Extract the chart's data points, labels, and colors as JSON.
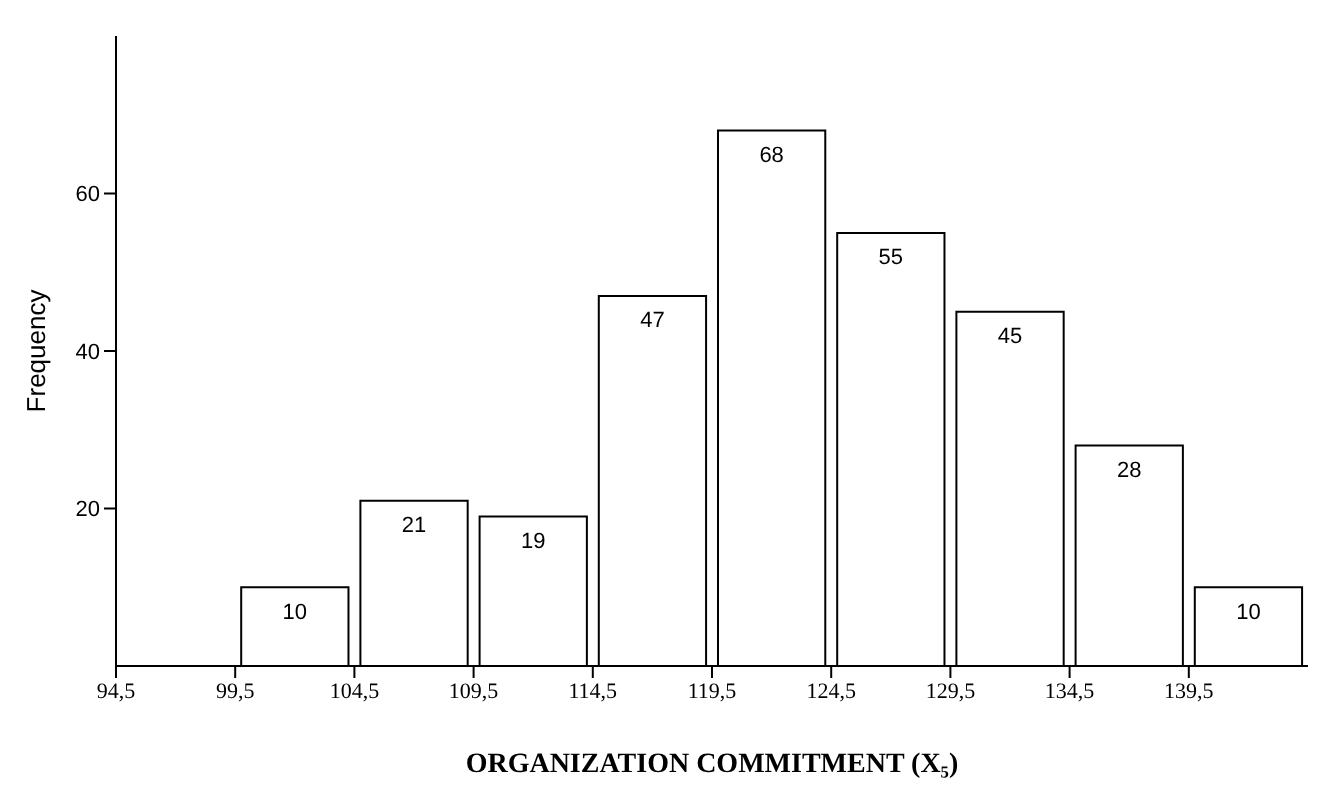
{
  "chart_data": {
    "type": "histogram",
    "xlabel": "ORGANIZATION COMMITMENT (X₅)",
    "ylabel": "Frequency",
    "bins": [
      99.5,
      104.5,
      109.5,
      114.5,
      119.5,
      124.5,
      129.5,
      134.5,
      139.5,
      144.5
    ],
    "values": [
      10,
      21,
      19,
      47,
      68,
      55,
      45,
      28,
      10
    ],
    "color": "#ffffff",
    "xlim": [
      94.5,
      144.5
    ],
    "xticks": [
      {
        "value": 94.5,
        "label": "94,5"
      },
      {
        "value": 99.5,
        "label": "99,5"
      },
      {
        "value": 104.5,
        "label": "104,5"
      },
      {
        "value": 109.5,
        "label": "109,5"
      },
      {
        "value": 114.5,
        "label": "114,5"
      },
      {
        "value": 119.5,
        "label": "119,5"
      },
      {
        "value": 124.5,
        "label": "124,5"
      },
      {
        "value": 129.5,
        "label": "129,5"
      },
      {
        "value": 134.5,
        "label": "134,5"
      },
      {
        "value": 139.5,
        "label": "139,5"
      }
    ],
    "ylim": [
      0,
      80
    ],
    "yticks": [
      20,
      40,
      60
    ],
    "data_labels": true,
    "grid": false,
    "legend": false
  }
}
